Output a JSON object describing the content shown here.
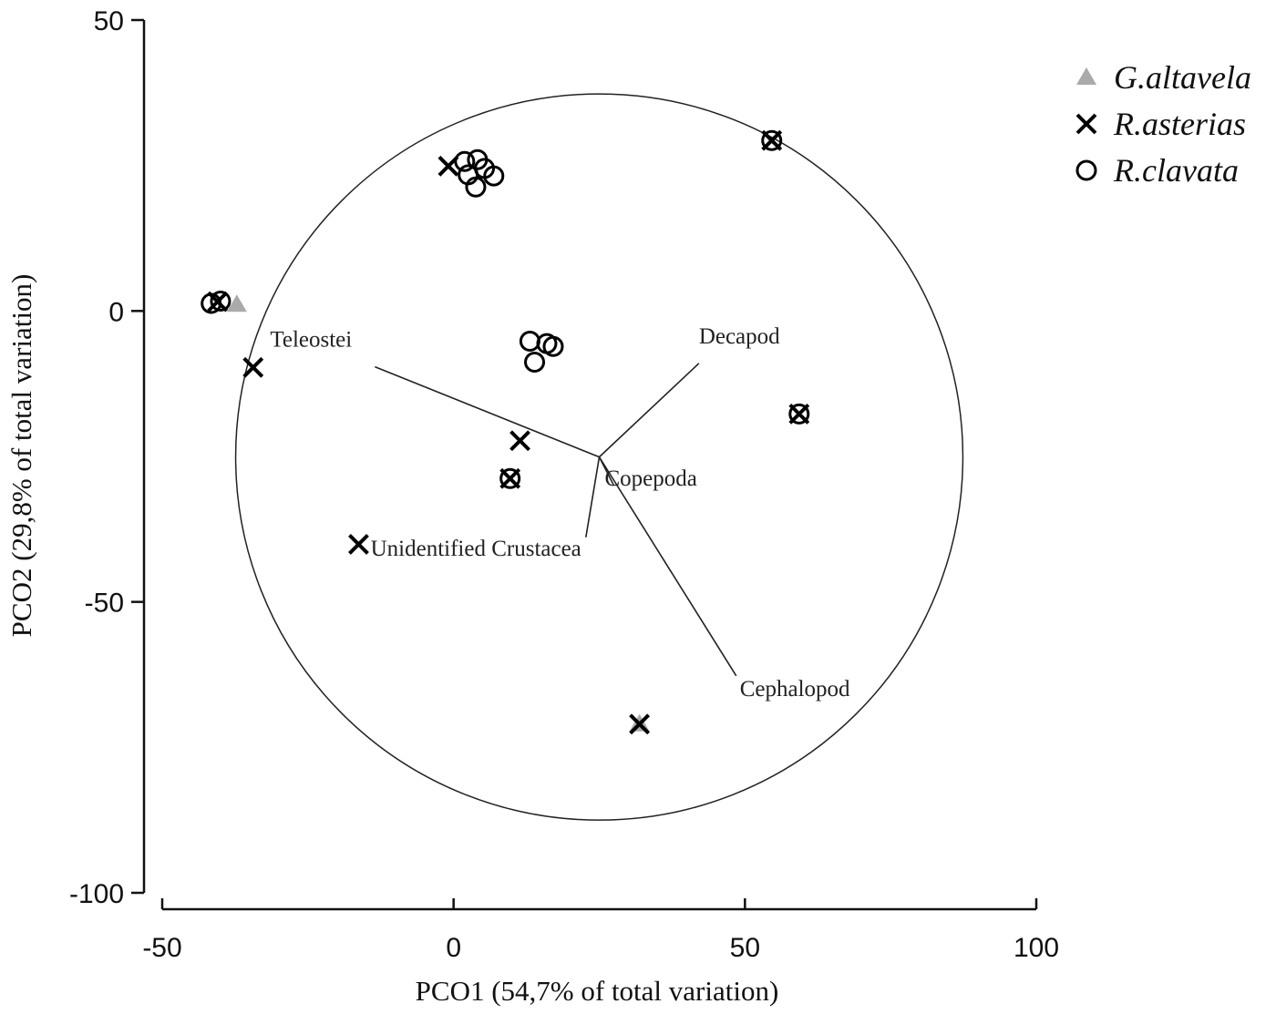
{
  "chart_data": {
    "type": "scatter",
    "x_label": "PCO1 (54,7% of total variation)",
    "y_label": "PCO2 (29,8% of total variation)",
    "xlim": [
      -50,
      100
    ],
    "ylim": [
      -100,
      50
    ],
    "xticks": [
      -50,
      0,
      50,
      100
    ],
    "yticks": [
      -100,
      -50,
      0,
      50
    ],
    "legend": "top-right",
    "series": [
      {
        "name": "G.altavela",
        "color": "#aaaaaa",
        "marker": "triangle",
        "x": [
          -37.2,
          31.9
        ],
        "values": [
          1.1,
          -71
        ]
      },
      {
        "name": "R.asterias",
        "color": "#000000",
        "marker": "x",
        "x": [
          -0.9,
          -34.4,
          11.4,
          -16.3,
          31.9,
          54.6,
          59.3,
          9.7,
          -40.5
        ],
        "values": [
          24.9,
          -9.7,
          -22.3,
          -40.1,
          -71,
          29.3,
          -17.7,
          -28.8,
          1.6
        ]
      },
      {
        "name": "R.clavata",
        "color": "#000000",
        "marker": "circle",
        "x": [
          -41.6,
          -40,
          1.9,
          4.1,
          5.3,
          3.8,
          6.9,
          2.5,
          13.1,
          13.9,
          17.1,
          16,
          54.6,
          59.3,
          9.7
        ],
        "values": [
          1.3,
          1.7,
          25.7,
          26,
          24.5,
          21.3,
          23.2,
          23.4,
          -5.2,
          -8.8,
          -6.1,
          -5.6,
          29.3,
          -17.7,
          -28.8
        ]
      }
    ],
    "vector_origin": [
      25,
      -25.1
    ],
    "circle_radius": 62.4,
    "vectors": [
      {
        "label": "Teleostei",
        "x": -13.5,
        "y": -9.6
      },
      {
        "label": "Decapod",
        "x": 42.1,
        "y": -9
      },
      {
        "label": "Copepoda",
        "x": 27.5,
        "y": -30
      },
      {
        "label": "Unidentified Crustacea",
        "x": 22.7,
        "y": -38.9
      },
      {
        "label": "Cephalopod",
        "x": 48.5,
        "y": -62.7
      }
    ]
  }
}
